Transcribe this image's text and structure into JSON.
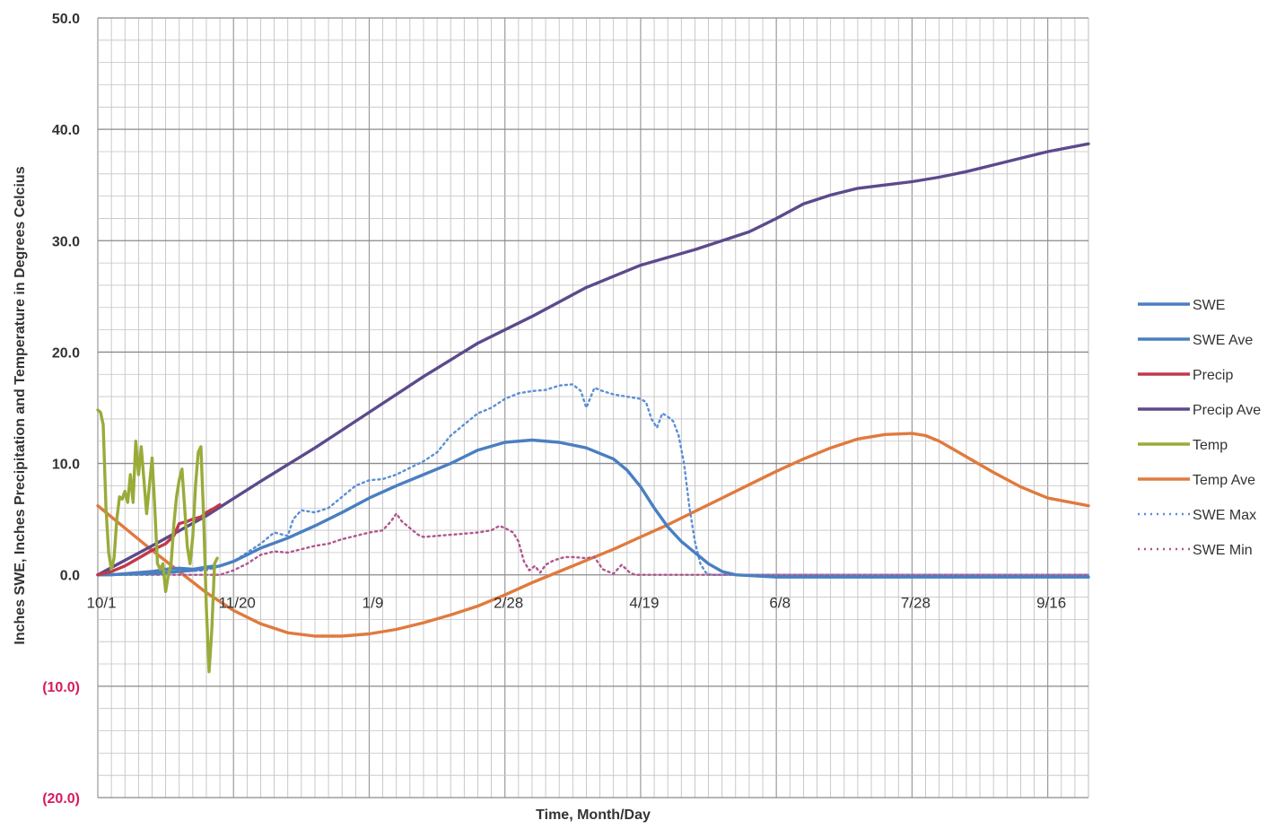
{
  "chart_data": {
    "type": "line",
    "title": "",
    "xlabel": "Time, Month/Day",
    "ylabel": "Inches SWE, Inches Precipitation and Temperature in Degrees Celcius",
    "xlim": [
      0,
      365
    ],
    "ylim": [
      -20,
      50
    ],
    "y_ticks": [
      {
        "value": 50,
        "label": "50.0"
      },
      {
        "value": 40,
        "label": "40.0"
      },
      {
        "value": 30,
        "label": "30.0"
      },
      {
        "value": 20,
        "label": "20.0"
      },
      {
        "value": 10,
        "label": "10.0"
      },
      {
        "value": 0,
        "label": "0.0"
      },
      {
        "value": -10,
        "label": "(10.0)"
      },
      {
        "value": -20,
        "label": "(20.0)"
      }
    ],
    "x_ticks": [
      {
        "day": 0,
        "label": "10/1"
      },
      {
        "day": 50,
        "label": "11/20"
      },
      {
        "day": 100,
        "label": "1/9"
      },
      {
        "day": 150,
        "label": "2/28"
      },
      {
        "day": 200,
        "label": "4/19"
      },
      {
        "day": 250,
        "label": "6/8"
      },
      {
        "day": 300,
        "label": "7/28"
      },
      {
        "day": 350,
        "label": "9/16"
      }
    ],
    "grid": true,
    "legend_position": "right",
    "series": [
      {
        "name": "SWE",
        "color": "#4a7fc1",
        "dash": "solid",
        "points": [
          [
            0,
            0
          ],
          [
            5,
            0
          ],
          [
            10,
            0.1
          ],
          [
            15,
            0.2
          ],
          [
            20,
            0.3
          ],
          [
            25,
            0.5
          ],
          [
            30,
            0.6
          ],
          [
            35,
            0.5
          ],
          [
            40,
            0.7
          ],
          [
            43,
            0.8
          ]
        ]
      },
      {
        "name": "SWE Ave",
        "color": "#4a7fc1",
        "dash": "solid",
        "points": [
          [
            0,
            0
          ],
          [
            20,
            0.1
          ],
          [
            35,
            0.4
          ],
          [
            45,
            0.8
          ],
          [
            50,
            1.2
          ],
          [
            60,
            2.4
          ],
          [
            70,
            3.3
          ],
          [
            80,
            4.4
          ],
          [
            90,
            5.6
          ],
          [
            100,
            6.9
          ],
          [
            110,
            8.0
          ],
          [
            120,
            9.0
          ],
          [
            130,
            10.0
          ],
          [
            140,
            11.2
          ],
          [
            150,
            11.9
          ],
          [
            160,
            12.1
          ],
          [
            170,
            11.9
          ],
          [
            180,
            11.4
          ],
          [
            190,
            10.4
          ],
          [
            195,
            9.4
          ],
          [
            200,
            7.9
          ],
          [
            205,
            6.0
          ],
          [
            210,
            4.3
          ],
          [
            215,
            3.0
          ],
          [
            220,
            2.0
          ],
          [
            225,
            1.0
          ],
          [
            230,
            0.3
          ],
          [
            235,
            0
          ],
          [
            250,
            -0.2
          ],
          [
            300,
            -0.2
          ],
          [
            365,
            -0.2
          ]
        ]
      },
      {
        "name": "Precip",
        "color": "#c0394b",
        "dash": "solid",
        "points": [
          [
            0,
            0
          ],
          [
            5,
            0.3
          ],
          [
            10,
            0.8
          ],
          [
            15,
            1.5
          ],
          [
            20,
            2.2
          ],
          [
            25,
            2.8
          ],
          [
            28,
            3.5
          ],
          [
            30,
            4.6
          ],
          [
            33,
            4.8
          ],
          [
            35,
            5.0
          ],
          [
            38,
            5.2
          ],
          [
            40,
            5.6
          ],
          [
            43,
            6.0
          ],
          [
            45,
            6.3
          ]
        ]
      },
      {
        "name": "Precip Ave",
        "color": "#5c4a8c",
        "dash": "solid",
        "points": [
          [
            0,
            0
          ],
          [
            20,
            2.6
          ],
          [
            40,
            5.3
          ],
          [
            60,
            8.4
          ],
          [
            80,
            11.4
          ],
          [
            100,
            14.6
          ],
          [
            120,
            17.8
          ],
          [
            140,
            20.8
          ],
          [
            160,
            23.2
          ],
          [
            180,
            25.8
          ],
          [
            200,
            27.8
          ],
          [
            220,
            29.2
          ],
          [
            240,
            30.8
          ],
          [
            250,
            32.0
          ],
          [
            260,
            33.3
          ],
          [
            270,
            34.1
          ],
          [
            280,
            34.7
          ],
          [
            290,
            35.0
          ],
          [
            300,
            35.3
          ],
          [
            310,
            35.7
          ],
          [
            320,
            36.2
          ],
          [
            330,
            36.8
          ],
          [
            340,
            37.4
          ],
          [
            350,
            38.0
          ],
          [
            365,
            38.7
          ]
        ]
      },
      {
        "name": "Temp",
        "color": "#9aab3a",
        "dash": "solid",
        "points": [
          [
            0,
            14.8
          ],
          [
            1,
            14.6
          ],
          [
            2,
            13.5
          ],
          [
            3,
            6.0
          ],
          [
            4,
            2.0
          ],
          [
            5,
            0.5
          ],
          [
            6,
            1.5
          ],
          [
            7,
            5.0
          ],
          [
            8,
            7.0
          ],
          [
            9,
            6.8
          ],
          [
            10,
            7.5
          ],
          [
            11,
            6.5
          ],
          [
            12,
            9.0
          ],
          [
            13,
            6.5
          ],
          [
            14,
            12.0
          ],
          [
            15,
            9.0
          ],
          [
            16,
            11.5
          ],
          [
            17,
            8.5
          ],
          [
            18,
            5.5
          ],
          [
            19,
            8.0
          ],
          [
            20,
            10.5
          ],
          [
            21,
            6.0
          ],
          [
            22,
            1.0
          ],
          [
            23,
            0.5
          ],
          [
            24,
            1.0
          ],
          [
            25,
            -1.5
          ],
          [
            26,
            0.0
          ],
          [
            27,
            1.0
          ],
          [
            28,
            4.5
          ],
          [
            29,
            7.0
          ],
          [
            30,
            8.5
          ],
          [
            31,
            9.5
          ],
          [
            32,
            6.0
          ],
          [
            33,
            2.5
          ],
          [
            34,
            1.0
          ],
          [
            35,
            3.5
          ],
          [
            36,
            8.0
          ],
          [
            37,
            11.0
          ],
          [
            38,
            11.5
          ],
          [
            39,
            5.0
          ],
          [
            40,
            -3.0
          ],
          [
            41,
            -8.7
          ],
          [
            42,
            -5.0
          ],
          [
            43,
            1.0
          ],
          [
            44,
            1.5
          ]
        ]
      },
      {
        "name": "Temp Ave",
        "color": "#e07a3e",
        "dash": "solid",
        "points": [
          [
            0,
            6.2
          ],
          [
            10,
            4.2
          ],
          [
            20,
            2.2
          ],
          [
            30,
            0.3
          ],
          [
            40,
            -1.6
          ],
          [
            50,
            -3.2
          ],
          [
            60,
            -4.4
          ],
          [
            70,
            -5.2
          ],
          [
            80,
            -5.5
          ],
          [
            90,
            -5.5
          ],
          [
            100,
            -5.3
          ],
          [
            110,
            -4.9
          ],
          [
            120,
            -4.3
          ],
          [
            130,
            -3.6
          ],
          [
            140,
            -2.8
          ],
          [
            150,
            -1.8
          ],
          [
            160,
            -0.7
          ],
          [
            170,
            0.3
          ],
          [
            180,
            1.3
          ],
          [
            190,
            2.3
          ],
          [
            200,
            3.4
          ],
          [
            210,
            4.5
          ],
          [
            220,
            5.7
          ],
          [
            230,
            6.9
          ],
          [
            240,
            8.1
          ],
          [
            250,
            9.3
          ],
          [
            260,
            10.4
          ],
          [
            270,
            11.4
          ],
          [
            280,
            12.2
          ],
          [
            290,
            12.6
          ],
          [
            300,
            12.7
          ],
          [
            305,
            12.5
          ],
          [
            310,
            12.0
          ],
          [
            315,
            11.3
          ],
          [
            320,
            10.6
          ],
          [
            330,
            9.2
          ],
          [
            340,
            7.9
          ],
          [
            350,
            6.9
          ],
          [
            365,
            6.2
          ]
        ]
      },
      {
        "name": "SWE Max",
        "color": "#5b8ed6",
        "dash": "dotted",
        "points": [
          [
            0,
            0
          ],
          [
            40,
            0.4
          ],
          [
            50,
            1.2
          ],
          [
            55,
            2.0
          ],
          [
            60,
            2.8
          ],
          [
            65,
            3.8
          ],
          [
            70,
            3.5
          ],
          [
            72,
            5.0
          ],
          [
            75,
            5.8
          ],
          [
            80,
            5.6
          ],
          [
            85,
            6.0
          ],
          [
            90,
            7.0
          ],
          [
            95,
            8.0
          ],
          [
            100,
            8.5
          ],
          [
            105,
            8.6
          ],
          [
            110,
            9.0
          ],
          [
            115,
            9.6
          ],
          [
            120,
            10.2
          ],
          [
            125,
            11.0
          ],
          [
            130,
            12.5
          ],
          [
            135,
            13.5
          ],
          [
            140,
            14.5
          ],
          [
            145,
            15.0
          ],
          [
            150,
            15.8
          ],
          [
            155,
            16.3
          ],
          [
            160,
            16.5
          ],
          [
            165,
            16.6
          ],
          [
            170,
            17.0
          ],
          [
            175,
            17.1
          ],
          [
            178,
            16.5
          ],
          [
            180,
            15.0
          ],
          [
            183,
            16.8
          ],
          [
            186,
            16.5
          ],
          [
            190,
            16.2
          ],
          [
            195,
            16.0
          ],
          [
            200,
            15.8
          ],
          [
            202,
            15.5
          ],
          [
            204,
            14.0
          ],
          [
            206,
            13.2
          ],
          [
            208,
            14.5
          ],
          [
            210,
            14.2
          ],
          [
            212,
            13.8
          ],
          [
            214,
            12.5
          ],
          [
            216,
            10.0
          ],
          [
            218,
            6.0
          ],
          [
            220,
            3.0
          ],
          [
            222,
            1.0
          ],
          [
            224,
            0.2
          ],
          [
            226,
            0
          ],
          [
            365,
            0
          ]
        ]
      },
      {
        "name": "SWE Min",
        "color": "#b0568e",
        "dash": "dotted",
        "points": [
          [
            0,
            0
          ],
          [
            45,
            0
          ],
          [
            50,
            0.4
          ],
          [
            55,
            1.0
          ],
          [
            60,
            1.8
          ],
          [
            65,
            2.1
          ],
          [
            70,
            2.0
          ],
          [
            75,
            2.3
          ],
          [
            80,
            2.6
          ],
          [
            85,
            2.8
          ],
          [
            90,
            3.2
          ],
          [
            95,
            3.5
          ],
          [
            100,
            3.8
          ],
          [
            105,
            4.0
          ],
          [
            108,
            4.8
          ],
          [
            110,
            5.5
          ],
          [
            112,
            4.8
          ],
          [
            115,
            4.2
          ],
          [
            118,
            3.6
          ],
          [
            120,
            3.4
          ],
          [
            125,
            3.5
          ],
          [
            130,
            3.6
          ],
          [
            135,
            3.7
          ],
          [
            140,
            3.8
          ],
          [
            145,
            4.0
          ],
          [
            148,
            4.4
          ],
          [
            150,
            4.2
          ],
          [
            153,
            3.8
          ],
          [
            155,
            3.0
          ],
          [
            157,
            1.2
          ],
          [
            159,
            0.4
          ],
          [
            161,
            0.8
          ],
          [
            163,
            0.2
          ],
          [
            165,
            0.9
          ],
          [
            168,
            1.3
          ],
          [
            172,
            1.6
          ],
          [
            175,
            1.6
          ],
          [
            180,
            1.5
          ],
          [
            183,
            1.6
          ],
          [
            186,
            0.5
          ],
          [
            190,
            0.1
          ],
          [
            193,
            0.9
          ],
          [
            196,
            0.2
          ],
          [
            198,
            0
          ],
          [
            365,
            0
          ]
        ]
      }
    ]
  }
}
